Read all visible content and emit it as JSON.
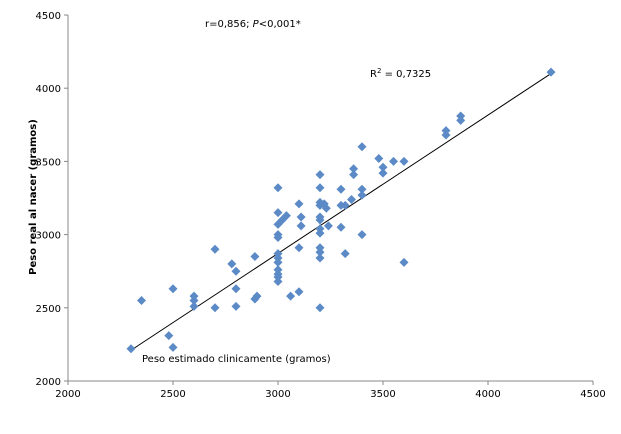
{
  "chart_data": {
    "type": "scatter",
    "title": "",
    "xlabel": "Peso estimado clinicamente (gramos)",
    "ylabel": "Peso real al nacer (gramos)",
    "xlim": [
      2000,
      4500
    ],
    "ylim": [
      2000,
      4500
    ],
    "xticks": [
      2000,
      2500,
      3000,
      3500,
      4000,
      4500
    ],
    "yticks": [
      2000,
      2500,
      3000,
      3500,
      4000,
      4500
    ],
    "grid": false,
    "annotations": {
      "correlation_prefix": "r=0,856; ",
      "p_symbol": "P",
      "p_suffix": "<0,001*",
      "r2_base": "R",
      "r2_exp": "2",
      "r2_rest": " = 0,7325"
    },
    "marker_color": "#5b8ac6",
    "trendline_color": "#000000",
    "trendline": {
      "x": [
        2300,
        4300
      ],
      "y": [
        2210,
        4100
      ]
    },
    "series": [
      {
        "points": [
          [
            2300,
            2220
          ],
          [
            2350,
            2550
          ],
          [
            2480,
            2310
          ],
          [
            2500,
            2230
          ],
          [
            2500,
            2630
          ],
          [
            2600,
            2510
          ],
          [
            2600,
            2550
          ],
          [
            2600,
            2580
          ],
          [
            2700,
            2900
          ],
          [
            2700,
            2500
          ],
          [
            2780,
            2800
          ],
          [
            2800,
            2750
          ],
          [
            2800,
            2630
          ],
          [
            2800,
            2510
          ],
          [
            2890,
            2850
          ],
          [
            2890,
            2560
          ],
          [
            2900,
            2580
          ],
          [
            3000,
            3320
          ],
          [
            3000,
            3150
          ],
          [
            3000,
            3070
          ],
          [
            3000,
            3000
          ],
          [
            3000,
            2980
          ],
          [
            3000,
            2870
          ],
          [
            3000,
            2840
          ],
          [
            3000,
            2810
          ],
          [
            3000,
            2760
          ],
          [
            3000,
            2730
          ],
          [
            3000,
            2710
          ],
          [
            3000,
            2680
          ],
          [
            3020,
            3100
          ],
          [
            3040,
            3130
          ],
          [
            3060,
            2580
          ],
          [
            3100,
            3210
          ],
          [
            3100,
            2910
          ],
          [
            3100,
            2610
          ],
          [
            3110,
            3120
          ],
          [
            3110,
            3060
          ],
          [
            3200,
            3410
          ],
          [
            3200,
            3320
          ],
          [
            3200,
            3220
          ],
          [
            3200,
            3200
          ],
          [
            3200,
            3120
          ],
          [
            3200,
            3100
          ],
          [
            3200,
            3040
          ],
          [
            3200,
            3010
          ],
          [
            3200,
            2910
          ],
          [
            3200,
            2880
          ],
          [
            3200,
            2840
          ],
          [
            3200,
            2500
          ],
          [
            3220,
            3210
          ],
          [
            3230,
            3180
          ],
          [
            3240,
            3060
          ],
          [
            3300,
            3310
          ],
          [
            3300,
            3200
          ],
          [
            3300,
            3050
          ],
          [
            3320,
            3200
          ],
          [
            3320,
            2870
          ],
          [
            3350,
            3240
          ],
          [
            3360,
            3450
          ],
          [
            3360,
            3410
          ],
          [
            3400,
            3600
          ],
          [
            3400,
            3310
          ],
          [
            3400,
            3270
          ],
          [
            3400,
            3000
          ],
          [
            3480,
            3520
          ],
          [
            3500,
            3460
          ],
          [
            3500,
            3420
          ],
          [
            3550,
            3500
          ],
          [
            3600,
            3500
          ],
          [
            3600,
            2810
          ],
          [
            3800,
            3710
          ],
          [
            3800,
            3680
          ],
          [
            3870,
            3810
          ],
          [
            3870,
            3780
          ],
          [
            4300,
            4110
          ]
        ]
      }
    ]
  }
}
